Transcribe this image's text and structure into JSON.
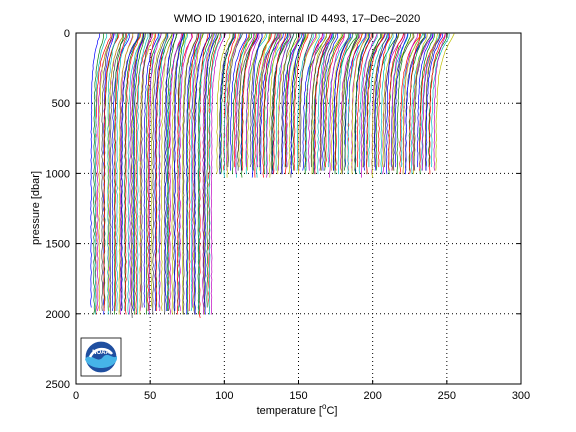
{
  "chart_data": {
    "type": "line",
    "title": "WMO ID 1901620, internal ID 4493, 17–Dec–2020",
    "xlabel_prefix": "temperature [",
    "xlabel_sup": "o",
    "xlabel_suffix": "C]",
    "ylabel": "pressure [dbar]",
    "xlim": [
      0,
      300
    ],
    "ylim": [
      0,
      2500
    ],
    "y_reversed": true,
    "x_ticks": [
      "0",
      "50",
      "100",
      "150",
      "200",
      "250",
      "300"
    ],
    "y_ticks": [
      "0",
      "500",
      "1000",
      "1500",
      "2000",
      "2500"
    ],
    "grid": true,
    "grid_style": "dotted",
    "profile_count": 230,
    "profile_offset_step": 1.0,
    "series_colors": [
      "#0000ff",
      "#008000",
      "#ff0000",
      "#00bfbf",
      "#bf00bf",
      "#bfbf00",
      "#404040"
    ],
    "groups": [
      {
        "start_x": 8,
        "end_x": 90,
        "max_pressure": 2000,
        "surface_temp_range": [
          8,
          14
        ],
        "deep_temp_range": [
          2,
          4
        ]
      },
      {
        "start_x": 90,
        "end_x": 238,
        "max_pressure": 1000,
        "surface_temp_range": [
          12,
          20
        ],
        "deep_temp_range": [
          4,
          6
        ]
      }
    ],
    "logo_label": "NOAA"
  }
}
